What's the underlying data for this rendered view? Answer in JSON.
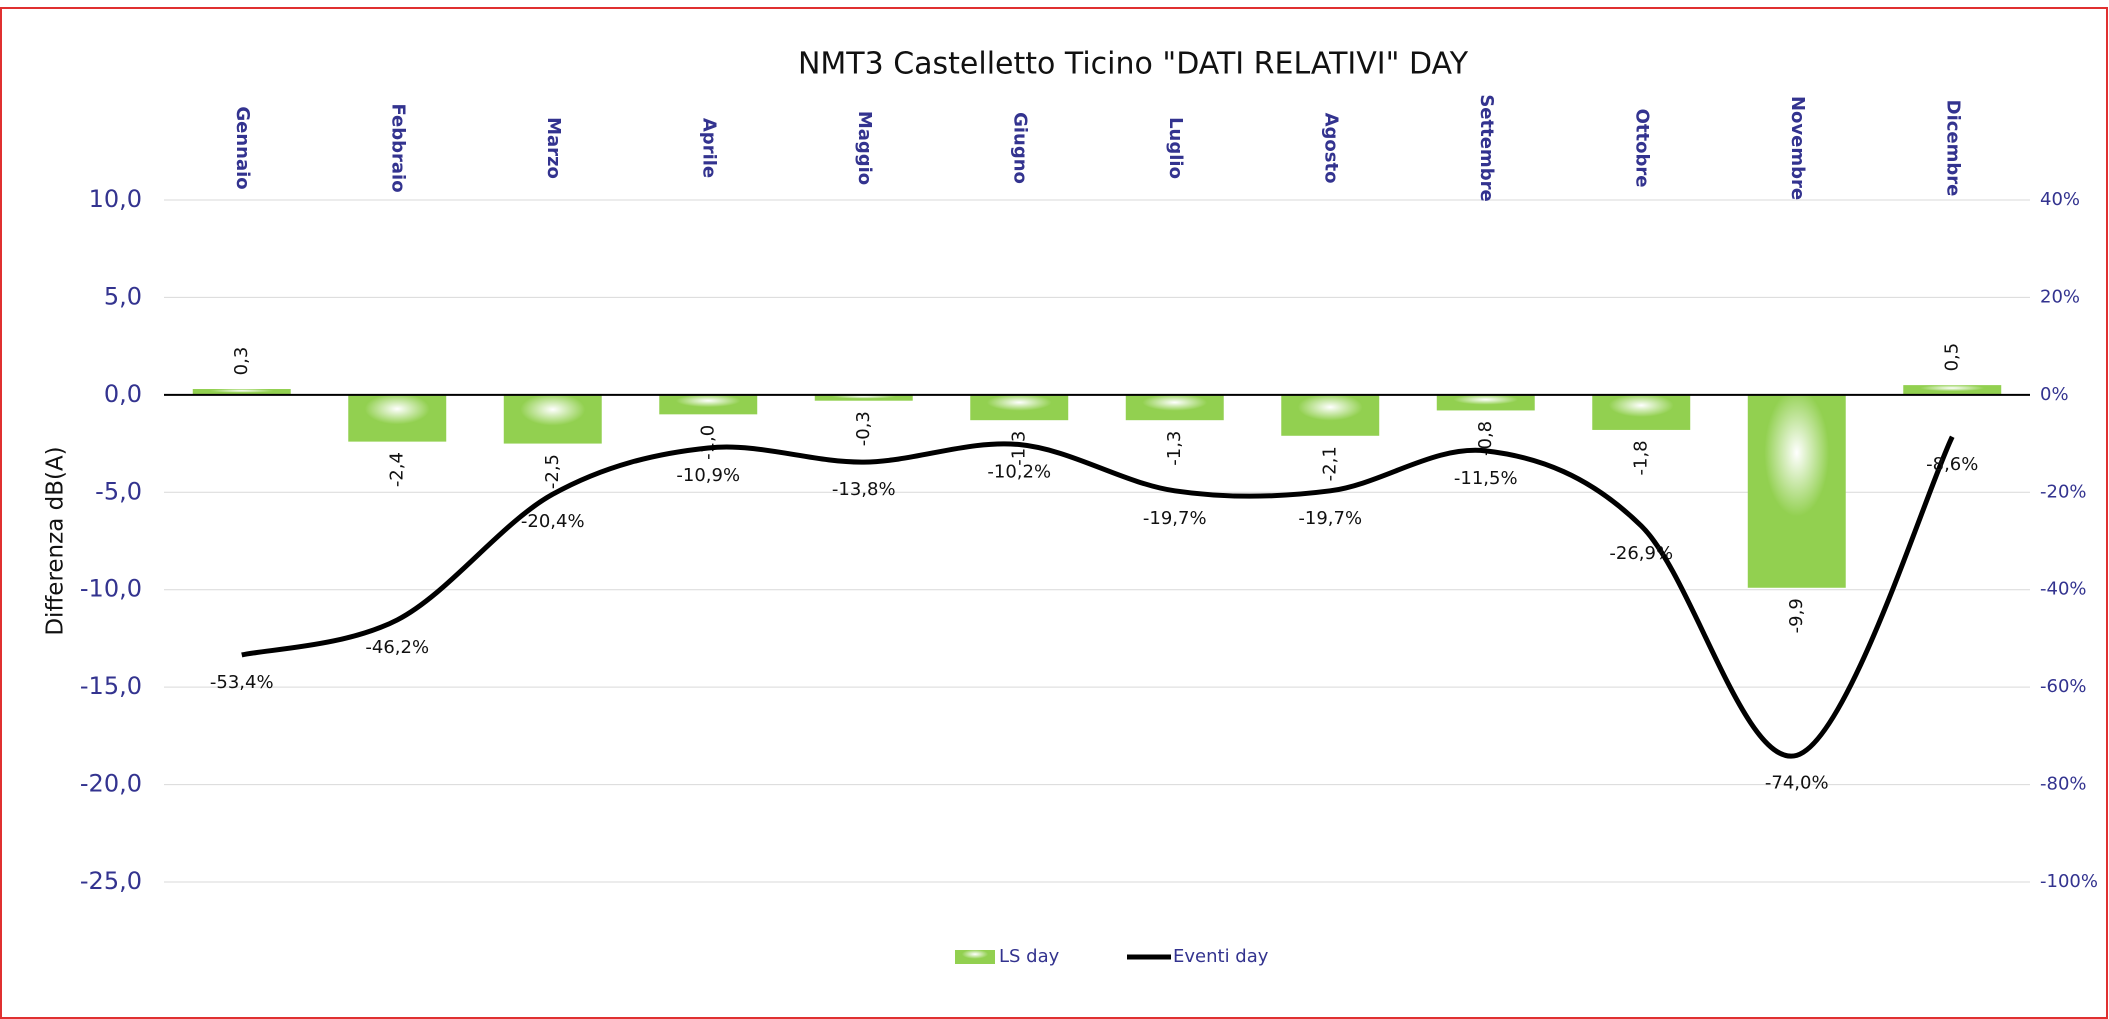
{
  "chart_data": {
    "type": "bar",
    "title": "NMT3 Castelletto Ticino \"DATI RELATIVI\" DAY",
    "y_label": "Differenza dB(A)",
    "categories": [
      "Gennaio",
      "Febbraio",
      "Marzo",
      "Aprile",
      "Maggio",
      "Giugno",
      "Luglio",
      "Agosto",
      "Settembre",
      "Ottobre",
      "Novembre",
      "Dicembre"
    ],
    "series": [
      {
        "name": "LS day",
        "type": "bar",
        "color": "#92d050",
        "values": [
          0.3,
          -2.4,
          -2.5,
          -1.0,
          -0.3,
          -1.3,
          -1.3,
          -2.1,
          -0.8,
          -1.8,
          -9.9,
          0.5
        ],
        "value_labels": [
          "0,3",
          "-2,4",
          "-2,5",
          "-1,0",
          "-0,3",
          "-1,3",
          "-1,3",
          "-2,1",
          "-0,8",
          "-1,8",
          "-9,9",
          "0,5"
        ]
      },
      {
        "name": "Eventi day",
        "type": "line",
        "axis": "y2",
        "color": "#000000",
        "values": [
          -53.4,
          -46.2,
          -20.4,
          -10.9,
          -13.8,
          -10.2,
          -19.7,
          -19.7,
          -11.5,
          -26.9,
          -74.0,
          -8.6
        ],
        "value_labels": [
          "-53,4%",
          "-46,2%",
          "-20,4%",
          "-10,9%",
          "-13,8%",
          "-10,2%",
          "-19,7%",
          "-19,7%",
          "-11,5%",
          "-26,9%",
          "-74,0%",
          "-8,6%"
        ]
      }
    ],
    "ylim": [
      -25,
      10
    ],
    "yticks": [
      {
        "value": -25,
        "label": "-25,0"
      },
      {
        "value": -20,
        "label": "-20,0"
      },
      {
        "value": -15,
        "label": "-15,0"
      },
      {
        "value": -10,
        "label": "-10,0"
      },
      {
        "value": -5,
        "label": "-5,0"
      },
      {
        "value": 0,
        "label": "0,0"
      },
      {
        "value": 5,
        "label": "5,0"
      },
      {
        "value": 10,
        "label": "10,0"
      }
    ],
    "y2lim": [
      -100,
      40
    ],
    "y2ticks": [
      {
        "value": -100,
        "label": "-100%"
      },
      {
        "value": -80,
        "label": "-80%"
      },
      {
        "value": -60,
        "label": "-60%"
      },
      {
        "value": -40,
        "label": "-40%"
      },
      {
        "value": -20,
        "label": "-20%"
      },
      {
        "value": 0,
        "label": "0%"
      },
      {
        "value": 20,
        "label": "20%"
      },
      {
        "value": 40,
        "label": "40%"
      }
    ],
    "grid": true,
    "legend": "bottom"
  }
}
